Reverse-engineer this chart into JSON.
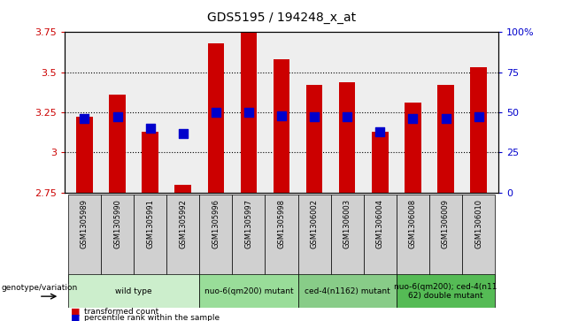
{
  "title": "GDS5195 / 194248_x_at",
  "samples": [
    "GSM1305989",
    "GSM1305990",
    "GSM1305991",
    "GSM1305992",
    "GSM1305996",
    "GSM1305997",
    "GSM1305998",
    "GSM1306002",
    "GSM1306003",
    "GSM1306004",
    "GSM1306008",
    "GSM1306009",
    "GSM1306010"
  ],
  "bar_values": [
    3.22,
    3.36,
    3.13,
    2.8,
    3.68,
    3.75,
    3.58,
    3.42,
    3.44,
    3.13,
    3.31,
    3.42,
    3.53
  ],
  "percentile_values": [
    46,
    47,
    40,
    37,
    50,
    50,
    48,
    47,
    47,
    38,
    46,
    46,
    47
  ],
  "bar_bottom": 2.75,
  "ymin": 2.75,
  "ymax": 3.75,
  "y2min": 0,
  "y2max": 100,
  "yticks": [
    2.75,
    3.0,
    3.25,
    3.5,
    3.75
  ],
  "ytick_labels": [
    "2.75",
    "3",
    "3.25",
    "3.5",
    "3.75"
  ],
  "y2ticks": [
    0,
    25,
    50,
    75,
    100
  ],
  "y2tick_labels": [
    "0",
    "25",
    "50",
    "75",
    "100%"
  ],
  "bar_color": "#CC0000",
  "dot_color": "#0000CC",
  "plot_bg_color": "#eeeeee",
  "group_defs": [
    {
      "start": 0,
      "end": 3,
      "label": "wild type",
      "color": "#cceecc"
    },
    {
      "start": 4,
      "end": 6,
      "label": "nuo-6(qm200) mutant",
      "color": "#99dd99"
    },
    {
      "start": 7,
      "end": 9,
      "label": "ced-4(n1162) mutant",
      "color": "#88cc88"
    },
    {
      "start": 10,
      "end": 12,
      "label": "nuo-6(qm200); ced-4(n11\n62) double mutant",
      "color": "#55bb55"
    }
  ],
  "bar_width": 0.5,
  "dot_size": 50,
  "legend_items": [
    "transformed count",
    "percentile rank within the sample"
  ],
  "genotype_label": "genotype/variation"
}
